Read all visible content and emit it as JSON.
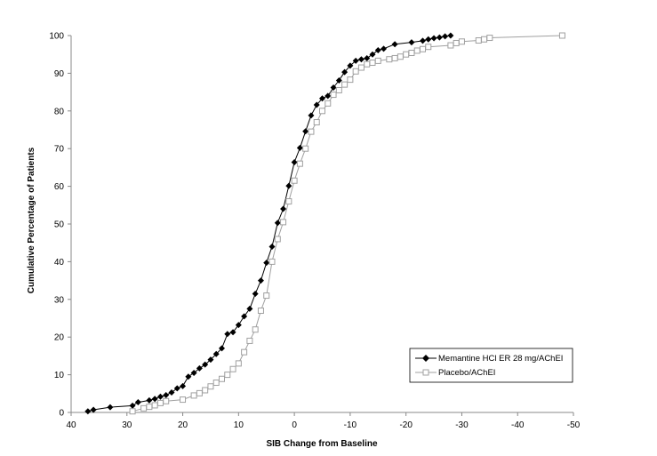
{
  "chart_data": {
    "type": "line",
    "title": "",
    "xlabel": "SIB Change from Baseline",
    "ylabel": "Cumulative Percentage of Patients",
    "xlim": [
      40,
      -50
    ],
    "ylim": [
      0,
      100
    ],
    "x_reversed": true,
    "xticks": [
      40,
      30,
      20,
      10,
      0,
      -10,
      -20,
      -30,
      -40,
      -50
    ],
    "xtick_labels": [
      "40",
      "30",
      "20",
      "10",
      "0",
      "-10",
      "-20",
      "-30",
      "-40",
      "-50"
    ],
    "yticks": [
      0,
      10,
      20,
      30,
      40,
      50,
      60,
      70,
      80,
      90,
      100
    ],
    "ytick_labels": [
      "0",
      "10",
      "20",
      "30",
      "40",
      "50",
      "60",
      "70",
      "80",
      "90",
      "100"
    ],
    "grid": false,
    "legend_position": "bottom-right",
    "series": [
      {
        "name": "Memantine HCl ER 28 mg/AChEI",
        "color": "#000000",
        "marker": "filled-diamond",
        "connect": true,
        "points": [
          [
            37,
            0.3
          ],
          [
            36,
            0.7
          ],
          [
            33,
            1.4
          ],
          [
            29,
            1.8
          ],
          [
            28,
            2.7
          ],
          [
            26,
            3.2
          ],
          [
            25,
            3.6
          ],
          [
            24,
            4.2
          ],
          [
            23,
            4.6
          ],
          [
            22,
            5.3
          ],
          [
            21,
            6.4
          ],
          [
            20,
            7.0
          ],
          [
            19,
            9.5
          ],
          [
            18,
            10.5
          ],
          [
            17,
            11.7
          ],
          [
            16,
            12.7
          ],
          [
            15,
            14.0
          ],
          [
            14,
            15.5
          ],
          [
            13,
            17.0
          ],
          [
            12,
            20.8
          ],
          [
            11,
            21.3
          ],
          [
            10,
            23.2
          ],
          [
            9,
            25.5
          ],
          [
            8,
            27.5
          ],
          [
            7,
            31.5
          ],
          [
            6,
            35.0
          ],
          [
            5,
            39.7
          ],
          [
            4,
            44.0
          ],
          [
            3,
            50.3
          ],
          [
            2,
            54.0
          ],
          [
            1,
            60.1
          ],
          [
            0,
            66.4
          ],
          [
            -1,
            70.2
          ],
          [
            -2,
            74.6
          ],
          [
            -3,
            78.8
          ],
          [
            -4,
            81.6
          ],
          [
            -5,
            83.3
          ],
          [
            -6,
            84.0
          ],
          [
            -7,
            86.2
          ],
          [
            -8,
            88.1
          ],
          [
            -9,
            90.3
          ],
          [
            -10,
            92.0
          ],
          [
            -11,
            93.3
          ],
          [
            -12,
            93.7
          ],
          [
            -13,
            94.0
          ],
          [
            -14,
            95.0
          ],
          [
            -15,
            96.1
          ],
          [
            -16,
            96.5
          ],
          [
            -18,
            97.7
          ],
          [
            -21,
            98.2
          ],
          [
            -23,
            98.6
          ],
          [
            -24,
            99.0
          ],
          [
            -25,
            99.3
          ],
          [
            -26,
            99.5
          ],
          [
            -27,
            99.8
          ],
          [
            -28,
            100
          ]
        ]
      },
      {
        "name": "Placebo/AChEI",
        "color": "#a0a0a0",
        "marker": "open-square",
        "connect": true,
        "points": [
          [
            29,
            0.3
          ],
          [
            27,
            1.1
          ],
          [
            26,
            1.5
          ],
          [
            25,
            1.9
          ],
          [
            24,
            2.5
          ],
          [
            23,
            3.0
          ],
          [
            20,
            3.4
          ],
          [
            18,
            4.5
          ],
          [
            17,
            5.1
          ],
          [
            16,
            5.9
          ],
          [
            15,
            6.9
          ],
          [
            14,
            7.9
          ],
          [
            13,
            8.9
          ],
          [
            12,
            10.0
          ],
          [
            11,
            11.5
          ],
          [
            10,
            13.0
          ],
          [
            9,
            16.0
          ],
          [
            8,
            19.0
          ],
          [
            7,
            22.0
          ],
          [
            6,
            27.0
          ],
          [
            5,
            31.0
          ],
          [
            4,
            40.0
          ],
          [
            3,
            46.0
          ],
          [
            2,
            50.5
          ],
          [
            1,
            56.0
          ],
          [
            0,
            61.5
          ],
          [
            -1,
            66.0
          ],
          [
            -2,
            70.0
          ],
          [
            -3,
            74.5
          ],
          [
            -4,
            77.0
          ],
          [
            -5,
            80.0
          ],
          [
            -6,
            82.0
          ],
          [
            -7,
            84.3
          ],
          [
            -8,
            85.5
          ],
          [
            -9,
            87.0
          ],
          [
            -10,
            88.3
          ],
          [
            -11,
            90.5
          ],
          [
            -12,
            91.5
          ],
          [
            -13,
            92.4
          ],
          [
            -14,
            92.8
          ],
          [
            -15,
            93.3
          ],
          [
            -17,
            93.7
          ],
          [
            -18,
            94.0
          ],
          [
            -19,
            94.4
          ],
          [
            -20,
            95.0
          ],
          [
            -21,
            95.4
          ],
          [
            -22,
            96.0
          ],
          [
            -23,
            96.4
          ],
          [
            -24,
            97.0
          ],
          [
            -28,
            97.4
          ],
          [
            -29,
            98.0
          ],
          [
            -30,
            98.4
          ],
          [
            -33,
            98.7
          ],
          [
            -34,
            99.0
          ],
          [
            -35,
            99.4
          ],
          [
            -48,
            100
          ]
        ]
      }
    ]
  }
}
